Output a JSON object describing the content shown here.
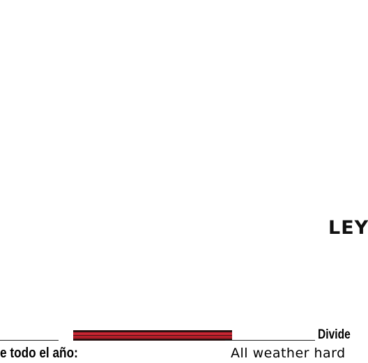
{
  "legend": {
    "title": "LEY",
    "divided_label": "Divide",
    "spanish_label": "e todo el año:",
    "english_label": "All weather hard",
    "symbol_colors": {
      "casing": "#2a1010",
      "fill": "#c0202c"
    },
    "symbol_icon": "divided-highway-line-icon"
  }
}
